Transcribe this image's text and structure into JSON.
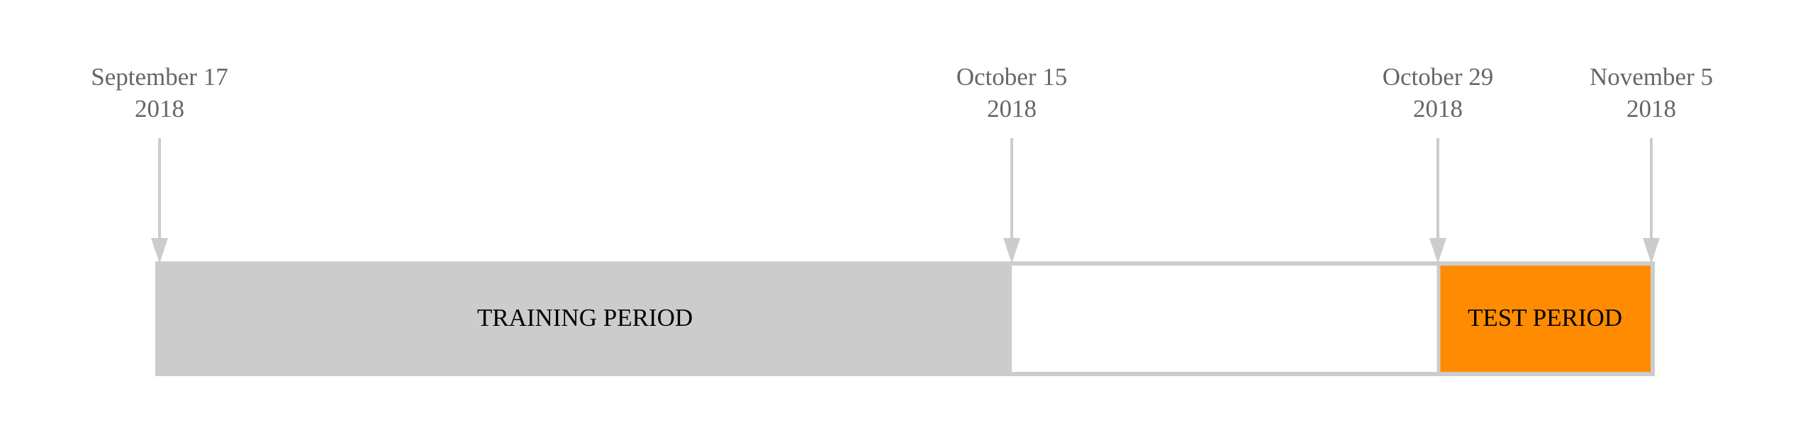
{
  "timeline": {
    "markers": [
      {
        "id": "sep17",
        "month_day": "September 17",
        "year": "2018"
      },
      {
        "id": "oct15",
        "month_day": "October 15",
        "year": "2018"
      },
      {
        "id": "oct29",
        "month_day": "October 29",
        "year": "2018"
      },
      {
        "id": "nov5",
        "month_day": "November 5",
        "year": "2018"
      }
    ],
    "periods": {
      "training": {
        "label": "TRAINING PERIOD",
        "color": "#cccccc"
      },
      "gap": {
        "label": "",
        "color": "#ffffff"
      },
      "test": {
        "label": "TEST PERIOD",
        "color": "#ff8c00"
      }
    },
    "colors": {
      "arrow": "#cccccc",
      "border": "#cccccc",
      "date_text": "#666666",
      "period_text": "#000000"
    }
  }
}
